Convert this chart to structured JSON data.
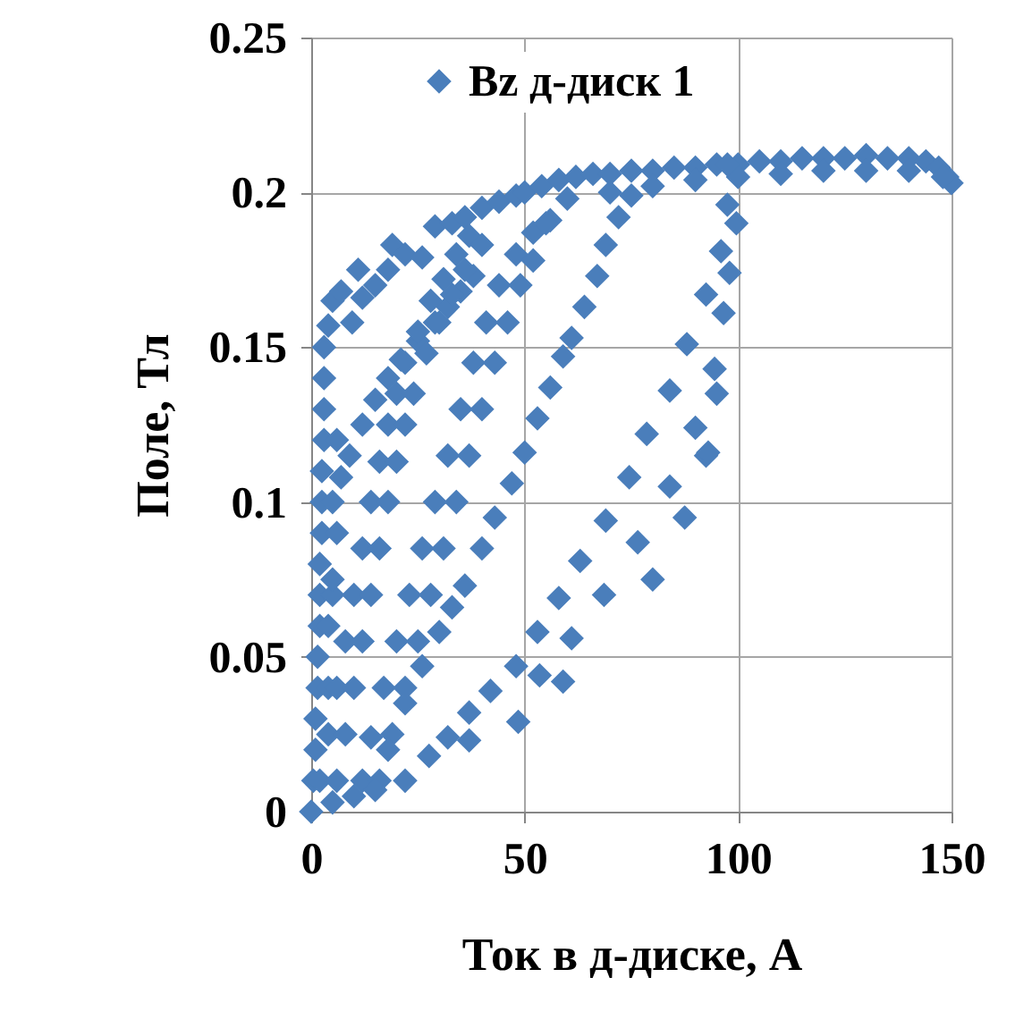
{
  "chart_data": {
    "type": "scatter",
    "xlabel": "Ток в д-диске, А",
    "ylabel": "Поле, Тл",
    "xlim": [
      0,
      150
    ],
    "ylim": [
      0,
      0.25
    ],
    "xticks": [
      0,
      50,
      100,
      150
    ],
    "yticks": [
      0,
      0.05,
      0.1,
      0.15,
      0.2,
      0.25
    ],
    "grid": true,
    "legend": "top",
    "marker": "diamond",
    "series": [
      {
        "name": "Bz д-диск 1",
        "color": "#4a7ebb",
        "x": [
          0,
          0.5,
          1,
          1,
          1.5,
          1.5,
          2,
          2,
          2,
          2.5,
          2.5,
          2.5,
          3,
          3,
          3,
          3,
          4,
          5,
          7,
          9.6,
          11,
          12,
          15,
          18,
          19,
          22,
          26,
          29,
          33,
          36,
          40,
          44,
          48,
          4,
          5,
          5,
          6,
          7,
          9,
          12,
          15,
          18,
          21,
          25,
          29,
          32,
          35,
          38,
          6,
          5,
          4,
          2,
          4,
          6,
          8,
          10,
          12,
          14,
          16,
          18,
          20,
          22,
          25,
          28,
          31,
          34,
          37,
          6,
          8,
          10,
          12,
          14,
          16,
          18,
          20,
          22,
          24,
          27,
          30,
          33,
          36,
          40,
          12,
          14,
          17,
          20,
          23,
          26,
          29,
          32,
          35,
          38,
          41,
          44,
          48,
          52,
          56,
          16,
          19,
          22,
          25,
          28,
          31,
          34,
          37,
          40,
          43,
          46,
          49,
          52,
          55,
          18,
          22,
          26,
          30,
          33,
          36,
          40,
          43,
          47,
          50,
          53,
          56,
          59,
          61,
          64,
          67,
          69,
          72,
          75,
          50,
          54,
          58,
          62,
          66,
          70,
          75,
          80,
          85,
          90,
          95,
          100,
          105,
          110,
          115,
          120,
          125,
          130,
          135,
          140,
          144,
          147,
          149,
          150,
          60,
          70,
          80,
          90,
          100,
          110,
          120,
          130,
          140,
          148,
          5,
          10,
          15,
          22,
          27.6,
          32,
          37,
          42,
          48,
          53,
          58,
          63,
          69,
          74.5,
          37,
          48.5,
          53.5,
          59,
          61,
          68.6,
          76.5,
          80,
          84,
          87.5,
          92.5,
          78.6,
          90,
          93,
          84,
          94.5,
          95,
          88,
          92.5,
          96.6,
          96,
          98,
          99.6,
          97.5,
          97.5
        ],
        "values": [
          0,
          0.01,
          0.02,
          0.03,
          0.04,
          0.05,
          0.06,
          0.07,
          0.08,
          0.09,
          0.1,
          0.11,
          0.12,
          0.13,
          0.14,
          0.15,
          0.157,
          0.165,
          0.168,
          0.158,
          0.175,
          0.166,
          0.17,
          0.175,
          0.183,
          0.18,
          0.179,
          0.189,
          0.19,
          0.192,
          0.195,
          0.197,
          0.199,
          0.04,
          0.07,
          0.1,
          0.12,
          0.108,
          0.115,
          0.125,
          0.133,
          0.14,
          0.146,
          0.152,
          0.158,
          0.163,
          0.168,
          0.173,
          0.09,
          0.075,
          0.06,
          0.01,
          0.025,
          0.04,
          0.055,
          0.07,
          0.085,
          0.1,
          0.113,
          0.125,
          0.135,
          0.145,
          0.155,
          0.165,
          0.172,
          0.18,
          0.186,
          0.01,
          0.025,
          0.04,
          0.055,
          0.07,
          0.085,
          0.1,
          0.113,
          0.125,
          0.135,
          0.148,
          0.158,
          0.167,
          0.175,
          0.183,
          0.01,
          0.024,
          0.04,
          0.055,
          0.07,
          0.085,
          0.1,
          0.115,
          0.13,
          0.145,
          0.158,
          0.17,
          0.18,
          0.187,
          0.191,
          0.01,
          0.025,
          0.04,
          0.055,
          0.07,
          0.085,
          0.1,
          0.115,
          0.13,
          0.145,
          0.158,
          0.17,
          0.178,
          0.19,
          0.02,
          0.035,
          0.047,
          0.058,
          0.066,
          0.073,
          0.085,
          0.095,
          0.106,
          0.116,
          0.127,
          0.137,
          0.147,
          0.153,
          0.163,
          0.173,
          0.183,
          0.192,
          0.199,
          0.2,
          0.202,
          0.204,
          0.205,
          0.206,
          0.206,
          0.207,
          0.207,
          0.208,
          0.208,
          0.209,
          0.209,
          0.21,
          0.21,
          0.211,
          0.211,
          0.211,
          0.212,
          0.211,
          0.211,
          0.21,
          0.208,
          0.205,
          0.203,
          0.198,
          0.2,
          0.202,
          0.204,
          0.205,
          0.206,
          0.207,
          0.207,
          0.207,
          0.205,
          0.003,
          0.005,
          0.007,
          0.01,
          0.018,
          0.024,
          0.032,
          0.039,
          0.047,
          0.058,
          0.069,
          0.081,
          0.094,
          0.108,
          0.023,
          0.029,
          0.044,
          0.042,
          0.056,
          0.07,
          0.087,
          0.075,
          0.105,
          0.095,
          0.115,
          0.122,
          0.124,
          0.116,
          0.136,
          0.143,
          0.135,
          0.151,
          0.167,
          0.161,
          0.181,
          0.174,
          0.19,
          0.196,
          0.209
        ]
      }
    ]
  }
}
